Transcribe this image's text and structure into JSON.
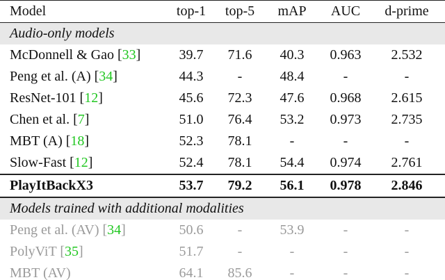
{
  "header": [
    "Model",
    "top-1",
    "top-5",
    "mAP",
    "AUC",
    "d-prime"
  ],
  "sections": [
    {
      "title": "Audio-only models",
      "muted": false,
      "rows": [
        {
          "model": [
            "McDonnell & Gao [",
            "33",
            "]"
          ],
          "cells": [
            "39.7",
            "71.6",
            "40.3",
            "0.963",
            "2.532"
          ]
        },
        {
          "model": [
            "Peng et al. (A) [",
            "34",
            "]"
          ],
          "cells": [
            "44.3",
            "-",
            "48.4",
            "-",
            "-"
          ]
        },
        {
          "model": [
            "ResNet-101 [",
            "12",
            "]"
          ],
          "cells": [
            "45.6",
            "72.3",
            "47.6",
            "0.968",
            "2.615"
          ]
        },
        {
          "model": [
            "Chen et al. [",
            "7",
            "]"
          ],
          "cells": [
            "51.0",
            "76.4",
            "53.2",
            "0.973",
            "2.735"
          ]
        },
        {
          "model": [
            "MBT (A) [",
            "18",
            "]"
          ],
          "cells": [
            "52.3",
            "78.1",
            "-",
            "-",
            "-"
          ]
        },
        {
          "model": [
            "Slow-Fast [",
            "12",
            "]"
          ],
          "cells": [
            "52.4",
            "78.1",
            "54.4",
            "0.974",
            "2.761"
          ]
        },
        {
          "model": [
            "PlayItBackX3"
          ],
          "cells": [
            "53.7",
            "79.2",
            "56.1",
            "0.978",
            "2.846"
          ],
          "bold": true
        }
      ]
    },
    {
      "title": "Models trained with additional modalities",
      "muted": true,
      "rows": [
        {
          "model": [
            "Peng et al. (AV) [",
            "34",
            "]"
          ],
          "cells": [
            "50.6",
            "-",
            "53.9",
            "-",
            "-"
          ]
        },
        {
          "model": [
            "PolyViT [",
            "35",
            "]"
          ],
          "cells": [
            "51.7",
            "-",
            "-",
            "-",
            "-"
          ]
        },
        {
          "model": [
            "MBT (AV)"
          ],
          "cells": [
            "64.1",
            "85.6",
            "-",
            "-",
            "-"
          ]
        }
      ]
    }
  ]
}
